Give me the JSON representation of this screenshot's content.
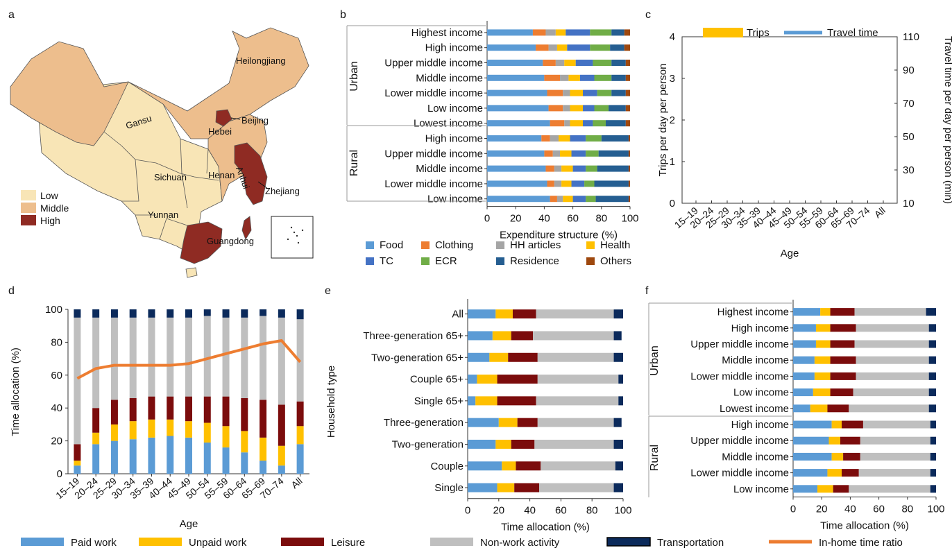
{
  "panel_letters": [
    "a",
    "b",
    "c",
    "d",
    "e",
    "f"
  ],
  "colors": {
    "map_low": "#F8E5B6",
    "map_middle": "#EDBE8D",
    "map_high": "#8F2B23",
    "food": "#5B9BD5",
    "clothing": "#ED7D31",
    "hh_articles": "#A5A5A5",
    "health": "#FFC000",
    "tc": "#4472C4",
    "ecr": "#70AD47",
    "residence": "#255E91",
    "others": "#9E480E",
    "paid_work": "#5B9BD5",
    "unpaid_work": "#FFC000",
    "leisure": "#7B0C0C",
    "nonwork": "#BFBFBF",
    "transportation": "#0B2A5B",
    "inhome": "#ED7D31",
    "trips": "#FFC000",
    "travel_time": "#5B9BD5"
  },
  "map": {
    "legend": [
      "Low",
      "Middle",
      "High"
    ],
    "labels": [
      "Heilongjiang",
      "Beijing",
      "Hebei",
      "Gansu",
      "Henan",
      "Anhui",
      "Sichuan",
      "Zhejiang",
      "Yunnan",
      "Guangdong"
    ]
  },
  "chart_data": [
    {
      "panel": "b",
      "type": "bar",
      "orientation": "horizontal",
      "stacked": true,
      "xlabel": "Expenditure structure (%)",
      "xlim": [
        0,
        100
      ],
      "xticks": [
        "0",
        "20",
        "40",
        "60",
        "80",
        "100"
      ],
      "groups": [
        "Urban",
        "Rural"
      ],
      "categories": [
        "Highest income",
        "High income",
        "Upper middle income",
        "Middle income",
        "Lower middle income",
        "Low income",
        "Lowest income",
        "High income",
        "Upper middle income",
        "Middle income",
        "Lower middle income",
        "Low income"
      ],
      "series": [
        {
          "name": "Food",
          "values": [
            32,
            34,
            39,
            40,
            42,
            43,
            44,
            38,
            40,
            41,
            42,
            44
          ]
        },
        {
          "name": "Clothing",
          "values": [
            9,
            9,
            9,
            11,
            11,
            10,
            10,
            6,
            6,
            6,
            5,
            5
          ]
        },
        {
          "name": "HH articles",
          "values": [
            7,
            6,
            6,
            6,
            5,
            5,
            4,
            6,
            5,
            5,
            5,
            4
          ]
        },
        {
          "name": "Health",
          "values": [
            7,
            7,
            8,
            8,
            9,
            9,
            9,
            8,
            8,
            8,
            7,
            7
          ]
        },
        {
          "name": "TC",
          "values": [
            17,
            16,
            12,
            10,
            10,
            8,
            7,
            11,
            10,
            9,
            9,
            9
          ]
        },
        {
          "name": "ECR",
          "values": [
            15,
            14,
            13,
            12,
            10,
            10,
            9,
            11,
            9,
            8,
            7,
            7
          ]
        },
        {
          "name": "Residence",
          "values": [
            9,
            10,
            10,
            10,
            10,
            12,
            14,
            19,
            21,
            22,
            24,
            23
          ]
        },
        {
          "name": "Others",
          "values": [
            4,
            4,
            3,
            3,
            3,
            3,
            3,
            1,
            1,
            1,
            1,
            1
          ]
        }
      ],
      "legend": [
        "Food",
        "Clothing",
        "HH articles",
        "Health",
        "TC",
        "ECR",
        "Residence",
        "Others"
      ]
    },
    {
      "panel": "c",
      "type": "line",
      "xlabel": "Age",
      "ylabel": "Trips per day per person",
      "ylabel_right": "Travel time per day per person (min)",
      "categories": [
        "15–19",
        "20–24",
        "25–29",
        "30–34",
        "35–39",
        "40–44",
        "45–49",
        "50–54",
        "55–59",
        "60–64",
        "65–69",
        "70–74",
        "All"
      ],
      "ylim": [
        0,
        4
      ],
      "yticks": [
        "0",
        "1",
        "2",
        "3",
        "4"
      ],
      "ylim_right": [
        10,
        110
      ],
      "yticks_right": [
        "10",
        "30",
        "50",
        "70",
        "90",
        "110"
      ],
      "legend": [
        "Trips",
        "Travel time"
      ]
    },
    {
      "panel": "d",
      "type": "bar",
      "stacked": true,
      "xlabel": "Age",
      "ylabel": "Time allocation (%)",
      "ylim": [
        0,
        100
      ],
      "yticks": [
        "0",
        "20",
        "40",
        "60",
        "80",
        "100"
      ],
      "categories": [
        "15–19",
        "20–24",
        "25–29",
        "30–34",
        "35–39",
        "40–44",
        "45–49",
        "50–54",
        "55–59",
        "60–64",
        "65–69",
        "70–74",
        "All"
      ],
      "series": [
        {
          "name": "Paid work",
          "values": [
            5,
            18,
            20,
            21,
            22,
            23,
            22,
            19,
            16,
            13,
            8,
            5,
            18
          ]
        },
        {
          "name": "Unpaid work",
          "values": [
            3,
            7,
            10,
            11,
            11,
            10,
            10,
            12,
            13,
            13,
            14,
            12,
            11
          ]
        },
        {
          "name": "Leisure",
          "values": [
            10,
            15,
            15,
            14,
            14,
            14,
            15,
            16,
            18,
            20,
            23,
            25,
            15
          ]
        },
        {
          "name": "Non-work activity",
          "values": [
            77,
            55,
            50,
            49,
            48,
            48,
            48,
            49,
            48,
            49,
            51,
            53,
            50
          ]
        },
        {
          "name": "Transportation",
          "values": [
            5,
            5,
            5,
            5,
            5,
            5,
            5,
            4,
            5,
            5,
            4,
            5,
            6
          ]
        },
        {
          "name": "In-home time ratio",
          "kind": "line",
          "values": [
            58,
            64,
            66,
            66,
            66,
            66,
            67,
            70,
            73,
            76,
            79,
            81,
            68
          ]
        }
      ]
    },
    {
      "panel": "e",
      "type": "bar",
      "orientation": "horizontal",
      "stacked": true,
      "xlabel": "Time allocation (%)",
      "ylabel": "Household type",
      "xlim": [
        0,
        100
      ],
      "xticks": [
        "0",
        "20",
        "40",
        "60",
        "80",
        "100"
      ],
      "categories": [
        "All",
        "Three-generation 65+",
        "Two-generation 65+",
        "Couple 65+",
        "Single 65+",
        "Three-generation",
        "Two-generation",
        "Couple",
        "Single"
      ],
      "series": [
        {
          "name": "Paid work",
          "values": [
            18,
            16,
            14,
            6,
            5,
            20,
            18,
            22,
            19
          ]
        },
        {
          "name": "Unpaid work",
          "values": [
            11,
            12,
            12,
            13,
            14,
            12,
            10,
            9,
            11
          ]
        },
        {
          "name": "Leisure",
          "values": [
            15,
            14,
            19,
            26,
            25,
            13,
            15,
            16,
            16
          ]
        },
        {
          "name": "Non-work activity",
          "values": [
            50,
            52,
            49,
            52,
            53,
            49,
            51,
            48,
            48
          ]
        },
        {
          "name": "Transportation",
          "values": [
            6,
            5,
            6,
            3,
            3,
            5,
            6,
            5,
            6
          ]
        }
      ]
    },
    {
      "panel": "f",
      "type": "bar",
      "orientation": "horizontal",
      "stacked": true,
      "xlabel": "Time allocation (%)",
      "xlim": [
        0,
        100
      ],
      "xticks": [
        "0",
        "20",
        "40",
        "60",
        "80",
        "100"
      ],
      "groups": [
        "Urban",
        "Rural"
      ],
      "categories": [
        "Highest income",
        "High income",
        "Upper middle income",
        "Middle income",
        "Lower middle income",
        "Low income",
        "Lowest income",
        "High income",
        "Upper middle income",
        "Middle income",
        "Lower middle income",
        "Low income"
      ],
      "series": [
        {
          "name": "Paid work",
          "values": [
            19,
            16,
            16,
            15,
            15,
            14,
            12,
            27,
            25,
            27,
            24,
            17
          ]
        },
        {
          "name": "Unpaid work",
          "values": [
            7,
            10,
            10,
            11,
            11,
            12,
            12,
            7,
            8,
            8,
            10,
            11
          ]
        },
        {
          "name": "Leisure",
          "values": [
            17,
            18,
            17,
            18,
            18,
            16,
            15,
            15,
            14,
            12,
            12,
            11
          ]
        },
        {
          "name": "Non-work activity",
          "values": [
            50,
            51,
            52,
            51,
            51,
            53,
            56,
            47,
            49,
            49,
            50,
            57
          ]
        },
        {
          "name": "Transportation",
          "values": [
            7,
            5,
            5,
            5,
            5,
            5,
            5,
            4,
            4,
            4,
            4,
            4
          ]
        }
      ]
    }
  ],
  "bottom_legend": [
    "Paid work",
    "Unpaid work",
    "Leisure",
    "Non-work activity",
    "Transportation",
    "In-home time ratio"
  ]
}
